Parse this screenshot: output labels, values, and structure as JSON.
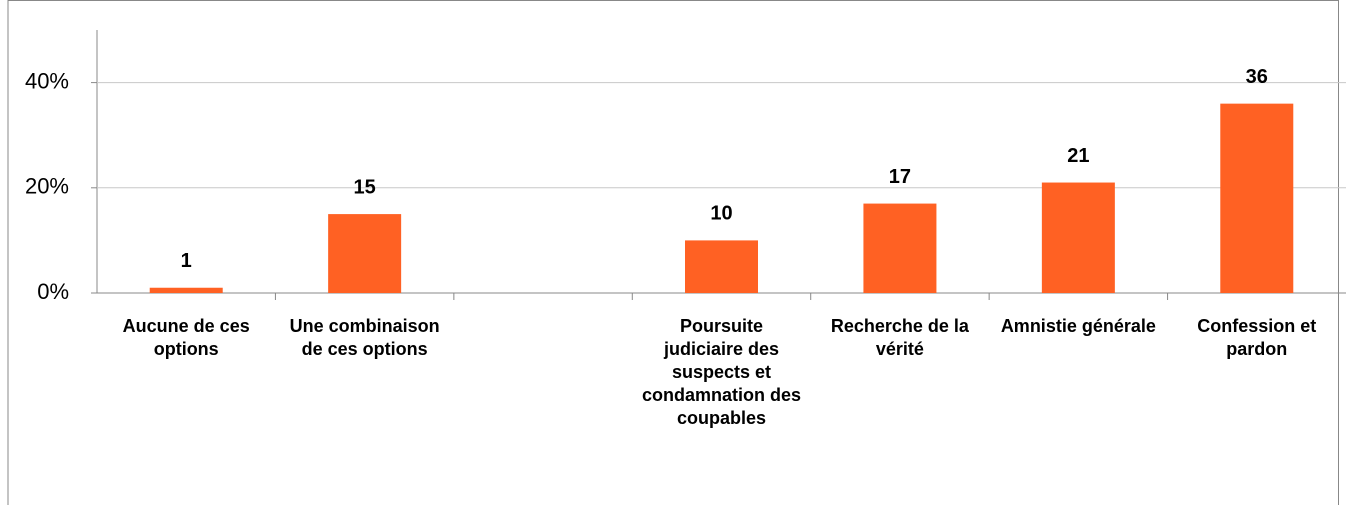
{
  "chart_data": {
    "type": "bar",
    "categories": [
      "Aucune de ces options",
      "Une combinaison de ces options",
      null,
      "Poursuite judiciaire des suspects et condamnation des coupables",
      "Recherche de la vérité",
      "Amnistie générale",
      "Confession et pardon"
    ],
    "values": [
      1,
      15,
      null,
      10,
      17,
      21,
      36
    ],
    "color": "#ff6123",
    "ylim": [
      0,
      50
    ],
    "yticks": [
      {
        "value": 0,
        "label": "0%"
      },
      {
        "value": 20,
        "label": "20%"
      },
      {
        "value": 40,
        "label": "40%"
      }
    ],
    "grid": true
  }
}
